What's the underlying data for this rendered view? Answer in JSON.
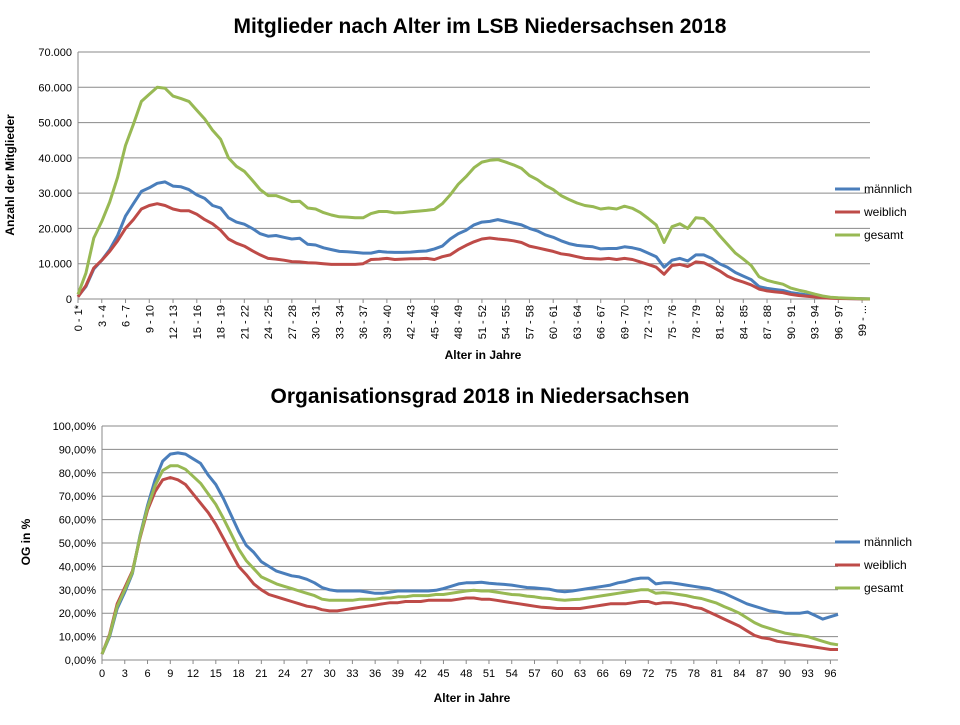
{
  "chart_data": [
    {
      "type": "line",
      "title": "Mitglieder nach Alter im LSB Niedersachsen 2018",
      "xlabel": "Alter in Jahre",
      "ylabel": "Anzahl der Mitglieder",
      "ylim": [
        0,
        70000
      ],
      "yticks": [
        "0",
        "10.000",
        "20.000",
        "30.000",
        "40.000",
        "50.000",
        "60.000",
        "70.000"
      ],
      "x_tick_labels": [
        "0 - 1*",
        "3 - 4",
        "6 - 7",
        "9 - 10",
        "12 - 13",
        "15 - 16",
        "18 - 19",
        "21 - 22",
        "24 - 25",
        "27 - 28",
        "30 - 31",
        "33 - 34",
        "36 - 37",
        "39 - 40",
        "42 - 43",
        "45 - 46",
        "48 - 49",
        "51 - 52",
        "54 - 55",
        "57 - 58",
        "60 - 61",
        "63 - 64",
        "66 - 67",
        "69 - 70",
        "72 - 73",
        "75 - 76",
        "78 - 79",
        "81 - 82",
        "84 - 85",
        "87 - 88",
        "90 - 91",
        "93 - 94",
        "96 - 97",
        "99 - ..."
      ],
      "x_count": 101,
      "grid": "horizontal",
      "legend": "right",
      "series": [
        {
          "name": "männlich",
          "color": "#4a7ebb",
          "values": [
            700,
            3500,
            8500,
            11000,
            14000,
            18000,
            23500,
            27000,
            30500,
            31500,
            32800,
            33200,
            32000,
            31800,
            31000,
            29500,
            28500,
            26500,
            25800,
            23000,
            21800,
            21200,
            20000,
            18500,
            17800,
            18000,
            17500,
            17000,
            17200,
            15500,
            15300,
            14500,
            14000,
            13500,
            13400,
            13200,
            13000,
            13000,
            13500,
            13300,
            13200,
            13200,
            13300,
            13500,
            13600,
            14200,
            15000,
            17000,
            18500,
            19500,
            21000,
            21800,
            22000,
            22500,
            22000,
            21500,
            21000,
            20000,
            19300,
            18200,
            17500,
            16500,
            15700,
            15200,
            15000,
            14800,
            14200,
            14300,
            14300,
            14800,
            14500,
            14000,
            13000,
            12000,
            9000,
            11000,
            11500,
            10800,
            12500,
            12500,
            11500,
            10000,
            9000,
            7500,
            6500,
            5500,
            3500,
            3000,
            2700,
            2400,
            1800,
            1500,
            1200,
            800,
            500,
            300,
            200,
            150,
            100,
            50,
            30
          ]
        },
        {
          "name": "weiblich",
          "color": "#be4b48",
          "values": [
            600,
            3800,
            8800,
            11000,
            13500,
            16500,
            20000,
            22500,
            25500,
            26500,
            27000,
            26500,
            25500,
            25000,
            25000,
            24000,
            22500,
            21300,
            19500,
            17000,
            15800,
            15000,
            13700,
            12500,
            11500,
            11300,
            11000,
            10600,
            10500,
            10300,
            10200,
            10000,
            9800,
            9800,
            9800,
            9800,
            10000,
            11200,
            11300,
            11500,
            11200,
            11300,
            11400,
            11400,
            11500,
            11200,
            12000,
            12500,
            14000,
            15200,
            16200,
            17000,
            17300,
            17000,
            16800,
            16500,
            16000,
            15000,
            14500,
            14000,
            13500,
            12800,
            12500,
            12000,
            11500,
            11400,
            11300,
            11500,
            11200,
            11500,
            11200,
            10500,
            9800,
            9000,
            7000,
            9500,
            9800,
            9200,
            10500,
            10300,
            9200,
            8000,
            6500,
            5500,
            4800,
            4000,
            2800,
            2300,
            2000,
            1800,
            1300,
            1000,
            800,
            600,
            350,
            200,
            150,
            100,
            60,
            30,
            10
          ]
        },
        {
          "name": "gesamt",
          "color": "#98b954",
          "values": [
            1300,
            7300,
            17300,
            22000,
            27500,
            34500,
            43500,
            49500,
            56000,
            58000,
            60000,
            59700,
            57500,
            56800,
            56000,
            53500,
            51000,
            47800,
            45300,
            40000,
            37600,
            36200,
            33700,
            31000,
            29300,
            29300,
            28500,
            27600,
            27700,
            25800,
            25500,
            24500,
            23800,
            23300,
            23200,
            23000,
            23000,
            24200,
            24800,
            24800,
            24400,
            24500,
            24700,
            24900,
            25100,
            25400,
            27000,
            29500,
            32500,
            34700,
            37200,
            38800,
            39300,
            39500,
            38800,
            38000,
            37000,
            35000,
            33800,
            32200,
            31000,
            29300,
            28200,
            27200,
            26500,
            26200,
            25500,
            25800,
            25500,
            26300,
            25700,
            24500,
            22800,
            21000,
            16000,
            20500,
            21300,
            20000,
            23000,
            22800,
            20700,
            18000,
            15500,
            13000,
            11300,
            9500,
            6300,
            5300,
            4700,
            4200,
            3100,
            2500,
            2000,
            1400,
            850,
            500,
            350,
            250,
            160,
            80,
            40
          ]
        }
      ]
    },
    {
      "type": "line",
      "title": "Organisationsgrad 2018 in Niedersachsen",
      "xlabel": "Alter in Jahre",
      "ylabel": "OG in %",
      "ylim": [
        0,
        100
      ],
      "yticks": [
        "0,00%",
        "10,00%",
        "20,00%",
        "30,00%",
        "40,00%",
        "50,00%",
        "60,00%",
        "70,00%",
        "80,00%",
        "90,00%",
        "100,00%"
      ],
      "x": [
        0,
        1,
        2,
        3,
        4,
        5,
        6,
        7,
        8,
        9,
        10,
        11,
        12,
        13,
        14,
        15,
        16,
        17,
        18,
        19,
        20,
        21,
        22,
        23,
        24,
        25,
        26,
        27,
        28,
        29,
        30,
        31,
        32,
        33,
        34,
        35,
        36,
        37,
        38,
        39,
        40,
        41,
        42,
        43,
        44,
        45,
        46,
        47,
        48,
        49,
        50,
        51,
        52,
        53,
        54,
        55,
        56,
        57,
        58,
        59,
        60,
        61,
        62,
        63,
        64,
        65,
        66,
        67,
        68,
        69,
        70,
        71,
        72,
        73,
        74,
        75,
        76,
        77,
        78,
        79,
        80,
        81,
        82,
        83,
        84,
        85,
        86,
        87,
        88,
        89,
        90,
        91,
        92,
        93,
        94,
        95,
        96,
        97
      ],
      "x_tick_labels": [
        "0",
        "3",
        "6",
        "9",
        "12",
        "15",
        "18",
        "21",
        "24",
        "27",
        "30",
        "33",
        "36",
        "39",
        "42",
        "45",
        "48",
        "51",
        "54",
        "57",
        "60",
        "63",
        "66",
        "69",
        "72",
        "75",
        "78",
        "81",
        "84",
        "87",
        "90",
        "93",
        "96"
      ],
      "grid": "horizontal",
      "legend": "right",
      "series": [
        {
          "name": "männlich",
          "color": "#4a7ebb",
          "values": [
            2.5,
            10,
            22,
            29,
            37,
            53,
            66,
            77,
            85,
            88,
            88.5,
            88,
            86,
            84,
            79,
            75,
            69,
            62,
            55,
            49,
            46,
            42,
            40,
            38,
            37,
            36,
            35.5,
            34.5,
            33,
            31,
            30,
            29.5,
            29.5,
            29.5,
            29.5,
            29,
            28.5,
            28.5,
            29,
            29.5,
            29.5,
            29.5,
            29.5,
            29.5,
            29.8,
            30.5,
            31.5,
            32.5,
            33,
            33,
            33.2,
            32.8,
            32.5,
            32.3,
            32,
            31.5,
            31,
            30.8,
            30.5,
            30.2,
            29.5,
            29.2,
            29.5,
            30,
            30.5,
            31,
            31.5,
            32,
            33,
            33.5,
            34.5,
            35,
            35,
            32.5,
            33,
            33,
            32.5,
            32,
            31.5,
            31,
            30.5,
            29.5,
            28.5,
            27,
            25.5,
            24,
            23,
            22,
            21,
            20.5,
            20,
            20,
            20,
            20.5,
            19,
            17.5,
            18.5,
            19.5
          ]
        },
        {
          "name": "weiblich",
          "color": "#be4b48",
          "values": [
            2.5,
            11,
            24,
            31,
            38,
            52,
            64,
            72,
            77,
            78,
            77,
            75,
            71,
            67,
            63,
            58,
            52,
            46,
            40,
            36.5,
            32.5,
            30,
            28,
            27,
            26,
            25,
            24,
            23,
            22.5,
            21.5,
            21,
            21,
            21.5,
            22,
            22.5,
            23,
            23.5,
            24,
            24.5,
            24.5,
            25,
            25,
            25,
            25.5,
            25.5,
            25.5,
            25.5,
            26,
            26.5,
            26.5,
            26,
            26,
            25.5,
            25,
            24.5,
            24,
            23.5,
            23,
            22.5,
            22.3,
            22,
            22,
            22,
            22,
            22.5,
            23,
            23.5,
            24,
            24,
            24,
            24.5,
            25,
            25,
            24,
            24.5,
            24.5,
            24,
            23.5,
            22.5,
            22,
            20.5,
            19,
            17.5,
            16,
            14.5,
            12.5,
            10.5,
            9.5,
            9,
            8,
            7.5,
            7,
            6.5,
            6,
            5.5,
            5,
            4.5,
            4.5
          ]
        },
        {
          "name": "gesamt",
          "color": "#98b954",
          "values": [
            2.5,
            10.5,
            23,
            30,
            37.5,
            52.5,
            65,
            74.5,
            81,
            83,
            83,
            81.5,
            78.5,
            75.5,
            71,
            66.5,
            60.5,
            54,
            47.5,
            42.5,
            39,
            35.5,
            34,
            32.5,
            31.5,
            30.5,
            29.5,
            28.5,
            27.5,
            26,
            25.5,
            25.5,
            25.5,
            25.5,
            26,
            26,
            26,
            26.5,
            26.5,
            27,
            27,
            27.5,
            27.5,
            27.5,
            28,
            28,
            28.5,
            29,
            29.5,
            29.8,
            29.5,
            29.5,
            29,
            28.5,
            28,
            27.8,
            27.3,
            27,
            26.5,
            26.3,
            25.8,
            25.5,
            25.8,
            26,
            26.5,
            27,
            27.5,
            28,
            28.5,
            29,
            29.5,
            30,
            30,
            28.5,
            28.8,
            28.5,
            28,
            27.5,
            26.8,
            26.3,
            25.3,
            24.3,
            22.8,
            21.5,
            20,
            18,
            16,
            14.5,
            13.5,
            12.5,
            11.5,
            11,
            10.5,
            10,
            9,
            8,
            7,
            6.5
          ]
        }
      ]
    }
  ]
}
